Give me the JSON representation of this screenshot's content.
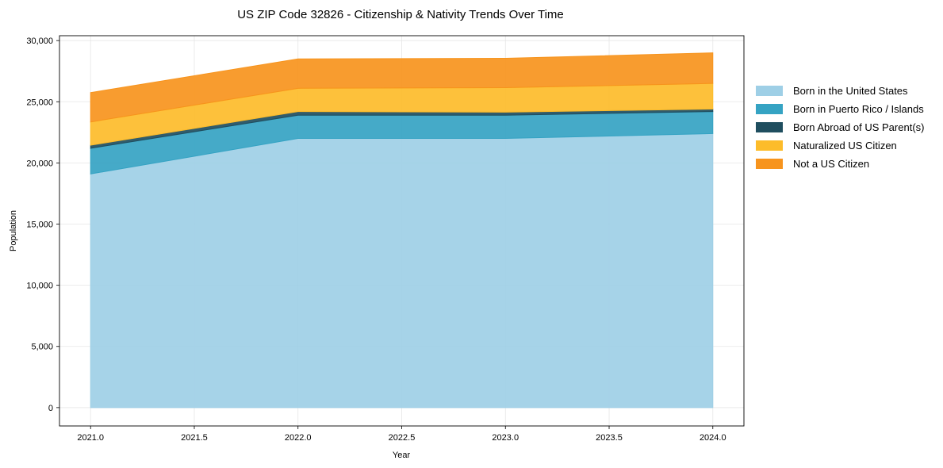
{
  "chart_data": {
    "type": "area",
    "stacked": true,
    "title": "US ZIP Code 32826 - Citizenship & Nativity Trends Over Time",
    "xlabel": "Year",
    "ylabel": "Population",
    "x": [
      2021,
      2022,
      2023,
      2024
    ],
    "xlim": [
      2020.85,
      2024.15
    ],
    "ylim": [
      -1500,
      30400
    ],
    "xticks": [
      2021.0,
      2021.5,
      2022.0,
      2022.5,
      2023.0,
      2023.5,
      2024.0
    ],
    "xtick_labels": [
      "2021.0",
      "2021.5",
      "2022.0",
      "2022.5",
      "2023.0",
      "2023.5",
      "2024.0"
    ],
    "yticks": [
      0,
      5000,
      10000,
      15000,
      20000,
      25000,
      30000
    ],
    "ytick_labels": [
      "0",
      "5,000",
      "10,000",
      "15,000",
      "20,000",
      "25,000",
      "30,000"
    ],
    "grid": true,
    "legend_position": "right",
    "series": [
      {
        "name": "Born in the United States",
        "color": "#9ecfe6",
        "values": [
          19100,
          22000,
          22000,
          22400
        ]
      },
      {
        "name": "Born in Puerto Rico / Islands",
        "color": "#35a3c3",
        "values": [
          2100,
          1900,
          1900,
          1800
        ]
      },
      {
        "name": "Born Abroad of US Parent(s)",
        "color": "#1f4e5f",
        "values": [
          250,
          300,
          250,
          200
        ]
      },
      {
        "name": "Naturalized US Citizen",
        "color": "#fdbc2a",
        "values": [
          1900,
          1900,
          2000,
          2100
        ]
      },
      {
        "name": "Not a US Citizen",
        "color": "#f7941d",
        "values": [
          2400,
          2400,
          2400,
          2500
        ]
      }
    ]
  }
}
